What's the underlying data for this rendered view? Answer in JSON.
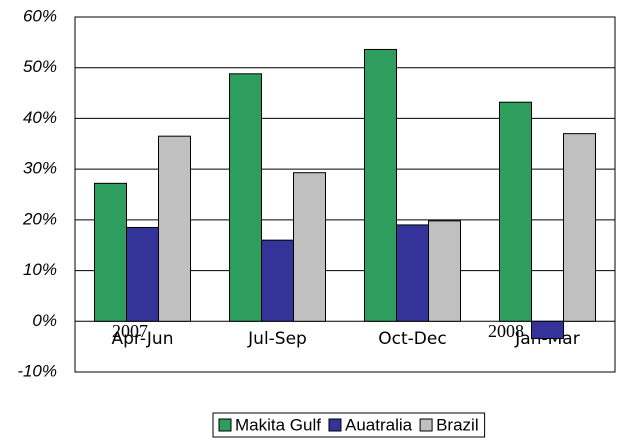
{
  "chart_data": {
    "type": "bar",
    "categories": [
      "Apr-Jun",
      "Jul-Sep",
      "Oct-Dec",
      "Jan-Mar"
    ],
    "annotations": [
      "2007",
      "2008"
    ],
    "series": [
      {
        "name": "Makita Gulf",
        "color": "#2e9e5e",
        "values": [
          27.2,
          48.8,
          53.6,
          43.2
        ]
      },
      {
        "name": "Auatralia",
        "color": "#33339a",
        "values": [
          18.5,
          16,
          19,
          -3.4
        ]
      },
      {
        "name": "Brazil",
        "color": "#c0c0c0",
        "values": [
          36.5,
          29.3,
          19.8,
          37
        ]
      }
    ],
    "ylim": [
      -10,
      60
    ],
    "yticks": [
      {
        "value": -10,
        "label": "-10%"
      },
      {
        "value": 0,
        "label": "0%"
      },
      {
        "value": 10,
        "label": "10%"
      },
      {
        "value": 20,
        "label": "20%"
      },
      {
        "value": 30,
        "label": "30%"
      },
      {
        "value": 40,
        "label": "40%"
      },
      {
        "value": 50,
        "label": "50%"
      },
      {
        "value": 60,
        "label": "60%"
      }
    ],
    "grid": true,
    "legend": "bottom"
  }
}
